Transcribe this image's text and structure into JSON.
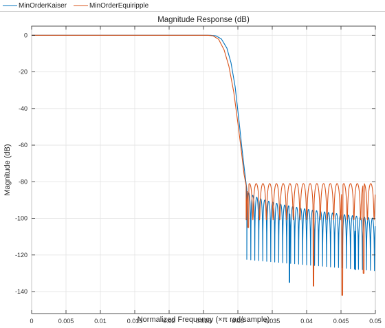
{
  "legend": {
    "items": [
      {
        "label": "MinOrderKaiser",
        "color": "#0072BD"
      },
      {
        "label": "MinOrderEquiripple",
        "color": "#D95319"
      }
    ]
  },
  "chart_data": {
    "type": "line",
    "title": "Magnitude Response (dB)",
    "xlabel": "Normalized Frequency (×π rad/sample)",
    "ylabel": "Magnitude (dB)",
    "xlim": [
      0,
      0.05
    ],
    "ylim": [
      -152,
      5
    ],
    "xticks": [
      0,
      0.005,
      0.01,
      0.015,
      0.02,
      0.025,
      0.03,
      0.035,
      0.04,
      0.045,
      0.05
    ],
    "xtick_labels": [
      "0",
      "0.005",
      "0.01",
      "0.015",
      "0.02",
      "0.025",
      "0.03",
      "0.035",
      "0.04",
      "0.045",
      "0.05"
    ],
    "yticks": [
      0,
      -20,
      -40,
      -60,
      -80,
      -100,
      -120,
      -140
    ],
    "ytick_labels": [
      "0",
      "-20",
      "-40",
      "-60",
      "-80",
      "-100",
      "-120",
      "-140"
    ],
    "grid": true,
    "legend_position": "top",
    "series": [
      {
        "name": "MinOrderKaiser",
        "color": "#0072BD",
        "x": [
          0,
          0.026,
          0.0268,
          0.0276,
          0.0284,
          0.029,
          0.0296,
          0.0302,
          0.0306,
          0.031,
          0.0313
        ],
        "y": [
          0,
          0,
          -0.3,
          -2,
          -7,
          -15,
          -28,
          -48,
          -62,
          -75,
          -84
        ],
        "stopband": {
          "start": 0.0313,
          "end": 0.05,
          "lobe_width": 0.00058,
          "peak_start": -84,
          "peak_end": -100,
          "notch_depth": -122,
          "deep_notches": [
            [
              0.0375,
              -135
            ],
            [
              0.0471,
              -128
            ]
          ]
        }
      },
      {
        "name": "MinOrderEquiripple",
        "color": "#D95319",
        "x": [
          0,
          0.0256,
          0.0264,
          0.0272,
          0.028,
          0.0287,
          0.0294,
          0.03,
          0.0305,
          0.0309,
          0.0312
        ],
        "y": [
          0,
          0,
          -0.3,
          -2.2,
          -8,
          -17,
          -31,
          -48,
          -63,
          -76,
          -82
        ],
        "stopband": {
          "start": 0.0312,
          "end": 0.05,
          "lobe_width": 0.00098,
          "peak_level": -81,
          "notch_depth": -100,
          "deep_notches": [
            [
              0.0315,
              -105
            ],
            [
              0.0452,
              -142
            ],
            [
              0.041,
              -137
            ],
            [
              0.0483,
              -130
            ]
          ]
        }
      }
    ]
  }
}
